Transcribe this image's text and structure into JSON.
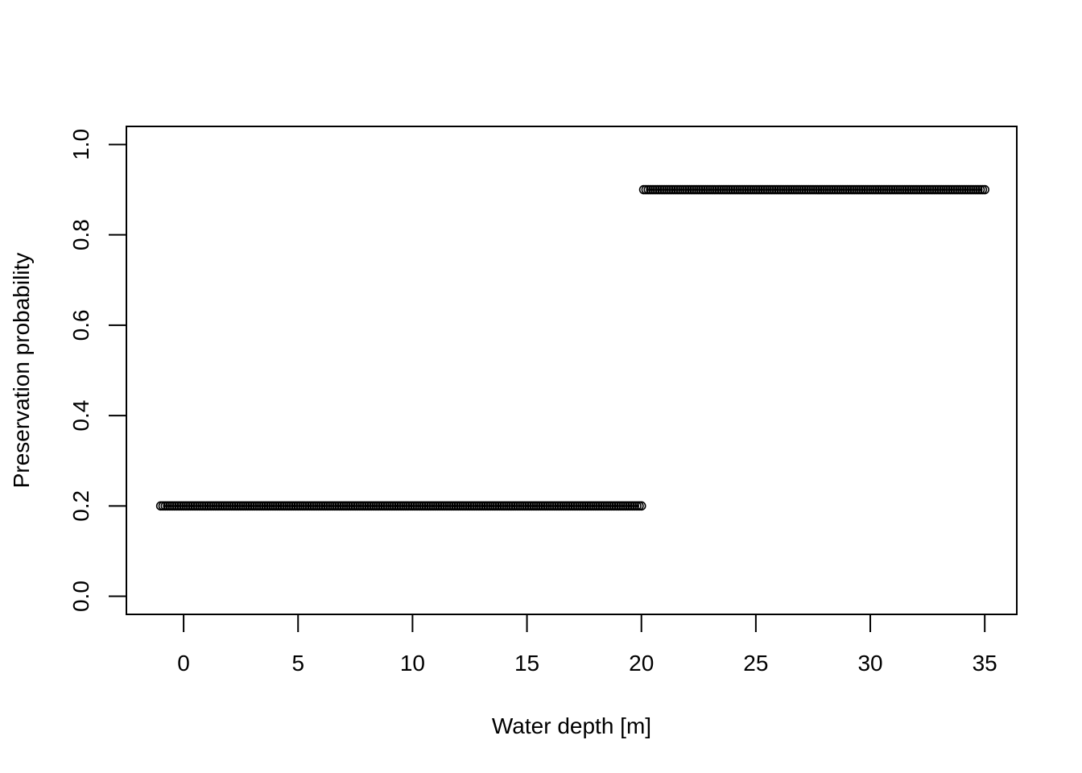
{
  "chart_data": {
    "type": "scatter",
    "title": "",
    "xlabel": "Water depth [m]",
    "ylabel": "Preservation probability",
    "xlim": [
      -2.5,
      36.4
    ],
    "ylim": [
      -0.04,
      1.04
    ],
    "x_ticks": [
      0,
      5,
      10,
      15,
      20,
      25,
      30,
      35
    ],
    "y_ticks": [
      0.0,
      0.2,
      0.4,
      0.6,
      0.8,
      1.0
    ],
    "x_tick_labels": [
      "0",
      "5",
      "10",
      "15",
      "20",
      "25",
      "30",
      "35"
    ],
    "y_tick_labels": [
      "0.0",
      "0.2",
      "0.4",
      "0.6",
      "0.8",
      "1.0"
    ],
    "grid": false,
    "legend": "none",
    "marker": "open-circle",
    "color": "#000000",
    "series": [
      {
        "segments": [
          {
            "x_start": -1,
            "x_end": 20,
            "step": 0.1,
            "y": 0.2
          },
          {
            "x_start": 20.1,
            "x_end": 35,
            "step": 0.1,
            "y": 0.9
          }
        ]
      }
    ]
  }
}
